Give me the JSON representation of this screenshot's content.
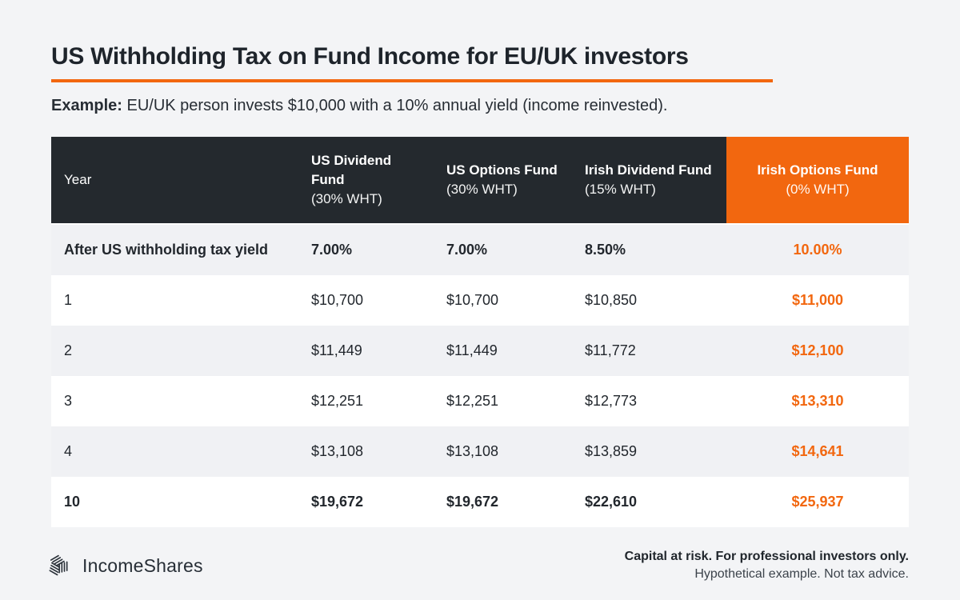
{
  "colors": {
    "accent_orange": "#F2670F",
    "header_dark": "#24292E",
    "zebra_gray": "#F0F1F4",
    "page_bg": "#F3F4F6",
    "text_dark": "#21262C"
  },
  "chart_data": {
    "type": "table",
    "title": "US Withholding Tax on Fund Income for EU/UK investors",
    "example_label": "Example:",
    "example_text": "EU/UK person invests $10,000 with a 10% annual yield (income reinvested).",
    "columns": [
      {
        "label": "Year",
        "sub": "",
        "highlight": false
      },
      {
        "label": "US Dividend Fund",
        "sub": "(30% WHT)",
        "highlight": false
      },
      {
        "label": "US Options Fund",
        "sub": "(30% WHT)",
        "highlight": false
      },
      {
        "label": "Irish Dividend Fund",
        "sub": "(15% WHT)",
        "highlight": false
      },
      {
        "label": "Irish Options Fund",
        "sub": "(0% WHT)",
        "highlight": true
      }
    ],
    "rows": [
      {
        "label": "After US withholding tax yield",
        "emphasis": true,
        "values": [
          "7.00%",
          "7.00%",
          "8.50%",
          "10.00%"
        ]
      },
      {
        "label": "1",
        "emphasis": false,
        "values": [
          "$10,700",
          "$10,700",
          "$10,850",
          "$11,000"
        ]
      },
      {
        "label": "2",
        "emphasis": false,
        "values": [
          "$11,449",
          "$11,449",
          "$11,772",
          "$12,100"
        ]
      },
      {
        "label": "3",
        "emphasis": false,
        "values": [
          "$12,251",
          "$12,251",
          "$12,773",
          "$13,310"
        ]
      },
      {
        "label": "4",
        "emphasis": false,
        "values": [
          "$13,108",
          "$13,108",
          "$13,859",
          "$14,641"
        ]
      },
      {
        "label": "10",
        "emphasis": true,
        "values": [
          "$19,672",
          "$19,672",
          "$22,610",
          "$25,937"
        ]
      }
    ]
  },
  "footer": {
    "brand": "IncomeShares",
    "logo_icon": "incomeshares-hex-logo",
    "disclaimer_line1": "Capital at risk. For professional investors only.",
    "disclaimer_line2": "Hypothetical example. Not tax advice."
  }
}
